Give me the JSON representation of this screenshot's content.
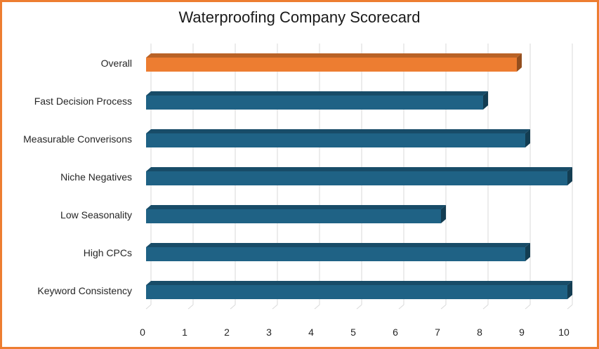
{
  "chart_data": {
    "type": "bar",
    "orientation": "horizontal",
    "title": "Waterproofing Company Scorecard",
    "categories": [
      "Overall",
      "Fast Decision Process",
      "Measurable Converisons",
      "Niche Negatives",
      "Low Seasonality",
      "High CPCs",
      "Keyword Consistency"
    ],
    "values": [
      8.8,
      8,
      9,
      10,
      7,
      9,
      10
    ],
    "highlight_index": 0,
    "xlim": [
      0,
      10
    ],
    "xticks": [
      "0",
      "1",
      "2",
      "3",
      "4",
      "5",
      "6",
      "7",
      "8",
      "9",
      "10"
    ],
    "xlabel": "",
    "ylabel": "",
    "grid": true,
    "legend": "none",
    "colors": {
      "frame": "#ED7D31",
      "highlight": "#ED7D31",
      "bar": "#1F6285",
      "grid": "#D9D9D9"
    }
  }
}
